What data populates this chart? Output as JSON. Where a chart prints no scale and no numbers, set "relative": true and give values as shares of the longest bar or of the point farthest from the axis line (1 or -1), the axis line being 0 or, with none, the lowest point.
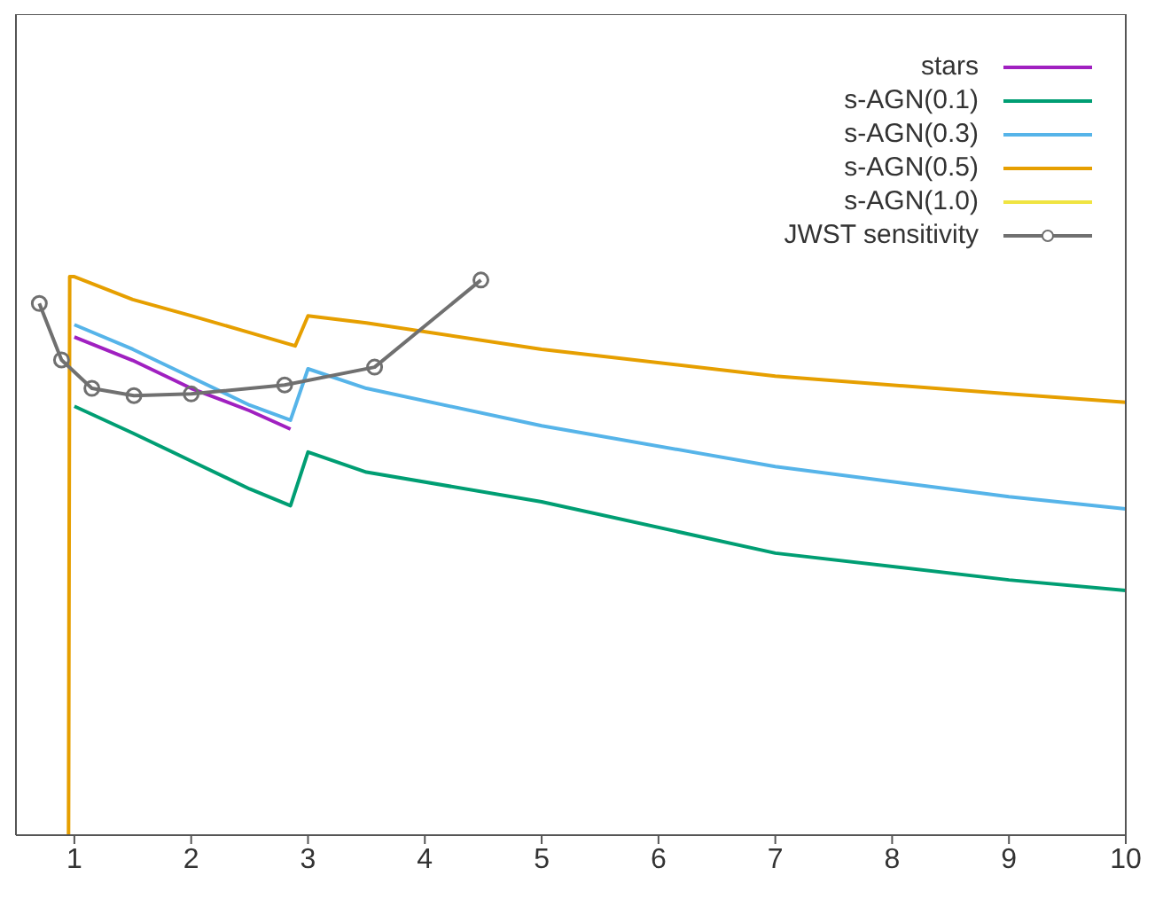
{
  "chart_data": {
    "type": "line",
    "relative": true,
    "xlim": [
      0.5,
      10
    ],
    "xticks": [
      1,
      2,
      3,
      4,
      5,
      6,
      7,
      8,
      9,
      10
    ],
    "tick_labels": "x",
    "legend": "top right",
    "series": [
      {
        "name": "stars",
        "color": "#a020c0",
        "x": [
          1.0,
          1.5,
          2.0,
          2.5,
          2.85
        ],
        "values": [
          0.892,
          0.85,
          0.8,
          0.76,
          0.727
        ]
      },
      {
        "name": "s-AGN(0.1)",
        "color": "#009e73",
        "x": [
          1.0,
          1.5,
          2.0,
          2.5,
          2.85,
          3.0,
          3.5,
          5,
          7,
          9,
          10
        ],
        "values": [
          0.768,
          0.72,
          0.67,
          0.62,
          0.59,
          0.686,
          0.65,
          0.597,
          0.505,
          0.457,
          0.438
        ]
      },
      {
        "name": "s-AGN(0.3)",
        "color": "#56b4e9",
        "x": [
          1.0,
          1.5,
          2.0,
          2.5,
          2.85,
          3.0,
          3.5,
          5,
          7,
          9,
          10
        ],
        "values": [
          0.914,
          0.87,
          0.82,
          0.77,
          0.743,
          0.835,
          0.8,
          0.733,
          0.66,
          0.606,
          0.584
        ]
      },
      {
        "name": "s-AGN(0.5)",
        "color": "#e69f00",
        "x": [
          0.95,
          0.96,
          1.0,
          1.5,
          2.0,
          2.5,
          2.89,
          3.0,
          3.5,
          5,
          7,
          9,
          10
        ],
        "values": [
          0,
          1.0,
          1.0,
          0.959,
          0.93,
          0.9,
          0.876,
          0.93,
          0.917,
          0.87,
          0.822,
          0.79,
          0.775
        ]
      },
      {
        "name": "s-AGN(1.0)",
        "color": "#f0e442"
      },
      {
        "name": "JWST sensitivity",
        "color": "#707070",
        "marker": "circle",
        "x": [
          0.7,
          0.89,
          1.15,
          1.51,
          2.0,
          2.8,
          3.57,
          4.48
        ],
        "values": [
          0.952,
          0.851,
          0.8,
          0.787,
          0.79,
          0.806,
          0.838,
          0.994
        ]
      }
    ]
  }
}
